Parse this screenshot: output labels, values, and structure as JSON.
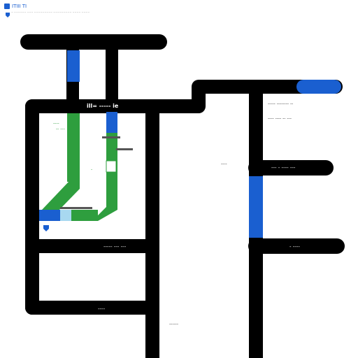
{
  "header": {
    "title": "ITIII TI",
    "subtitle": "~ ~~~~~~ ~~~ ~~~~~~~~~ ~~~~~~~~~ ~~~~ ~~~~"
  },
  "colors": {
    "background": "#ffffff",
    "road": "#000000",
    "transit_blue": "#1a5fd0",
    "park_green": "#2e9e3e",
    "light_blue": "#a8d8f0",
    "label": "#333333"
  },
  "icons": {
    "header_badge": "shield-icon",
    "poi_marker": "shield-icon"
  },
  "labels": {
    "block_top": "ill= -----   ie",
    "right_line_1": "----- -------- --",
    "right_line_2": "---- ---- -- ---",
    "park_label_1": "----",
    "park_label_2": "-- ---",
    "park_label_3": "-",
    "middle_label": "----",
    "right_mid_street": "--- - ---- ---",
    "left_mid_street": "----- ---  ---",
    "right_lower_street": "- ----",
    "bottom_left_street": "----",
    "bottom_center": "------"
  }
}
